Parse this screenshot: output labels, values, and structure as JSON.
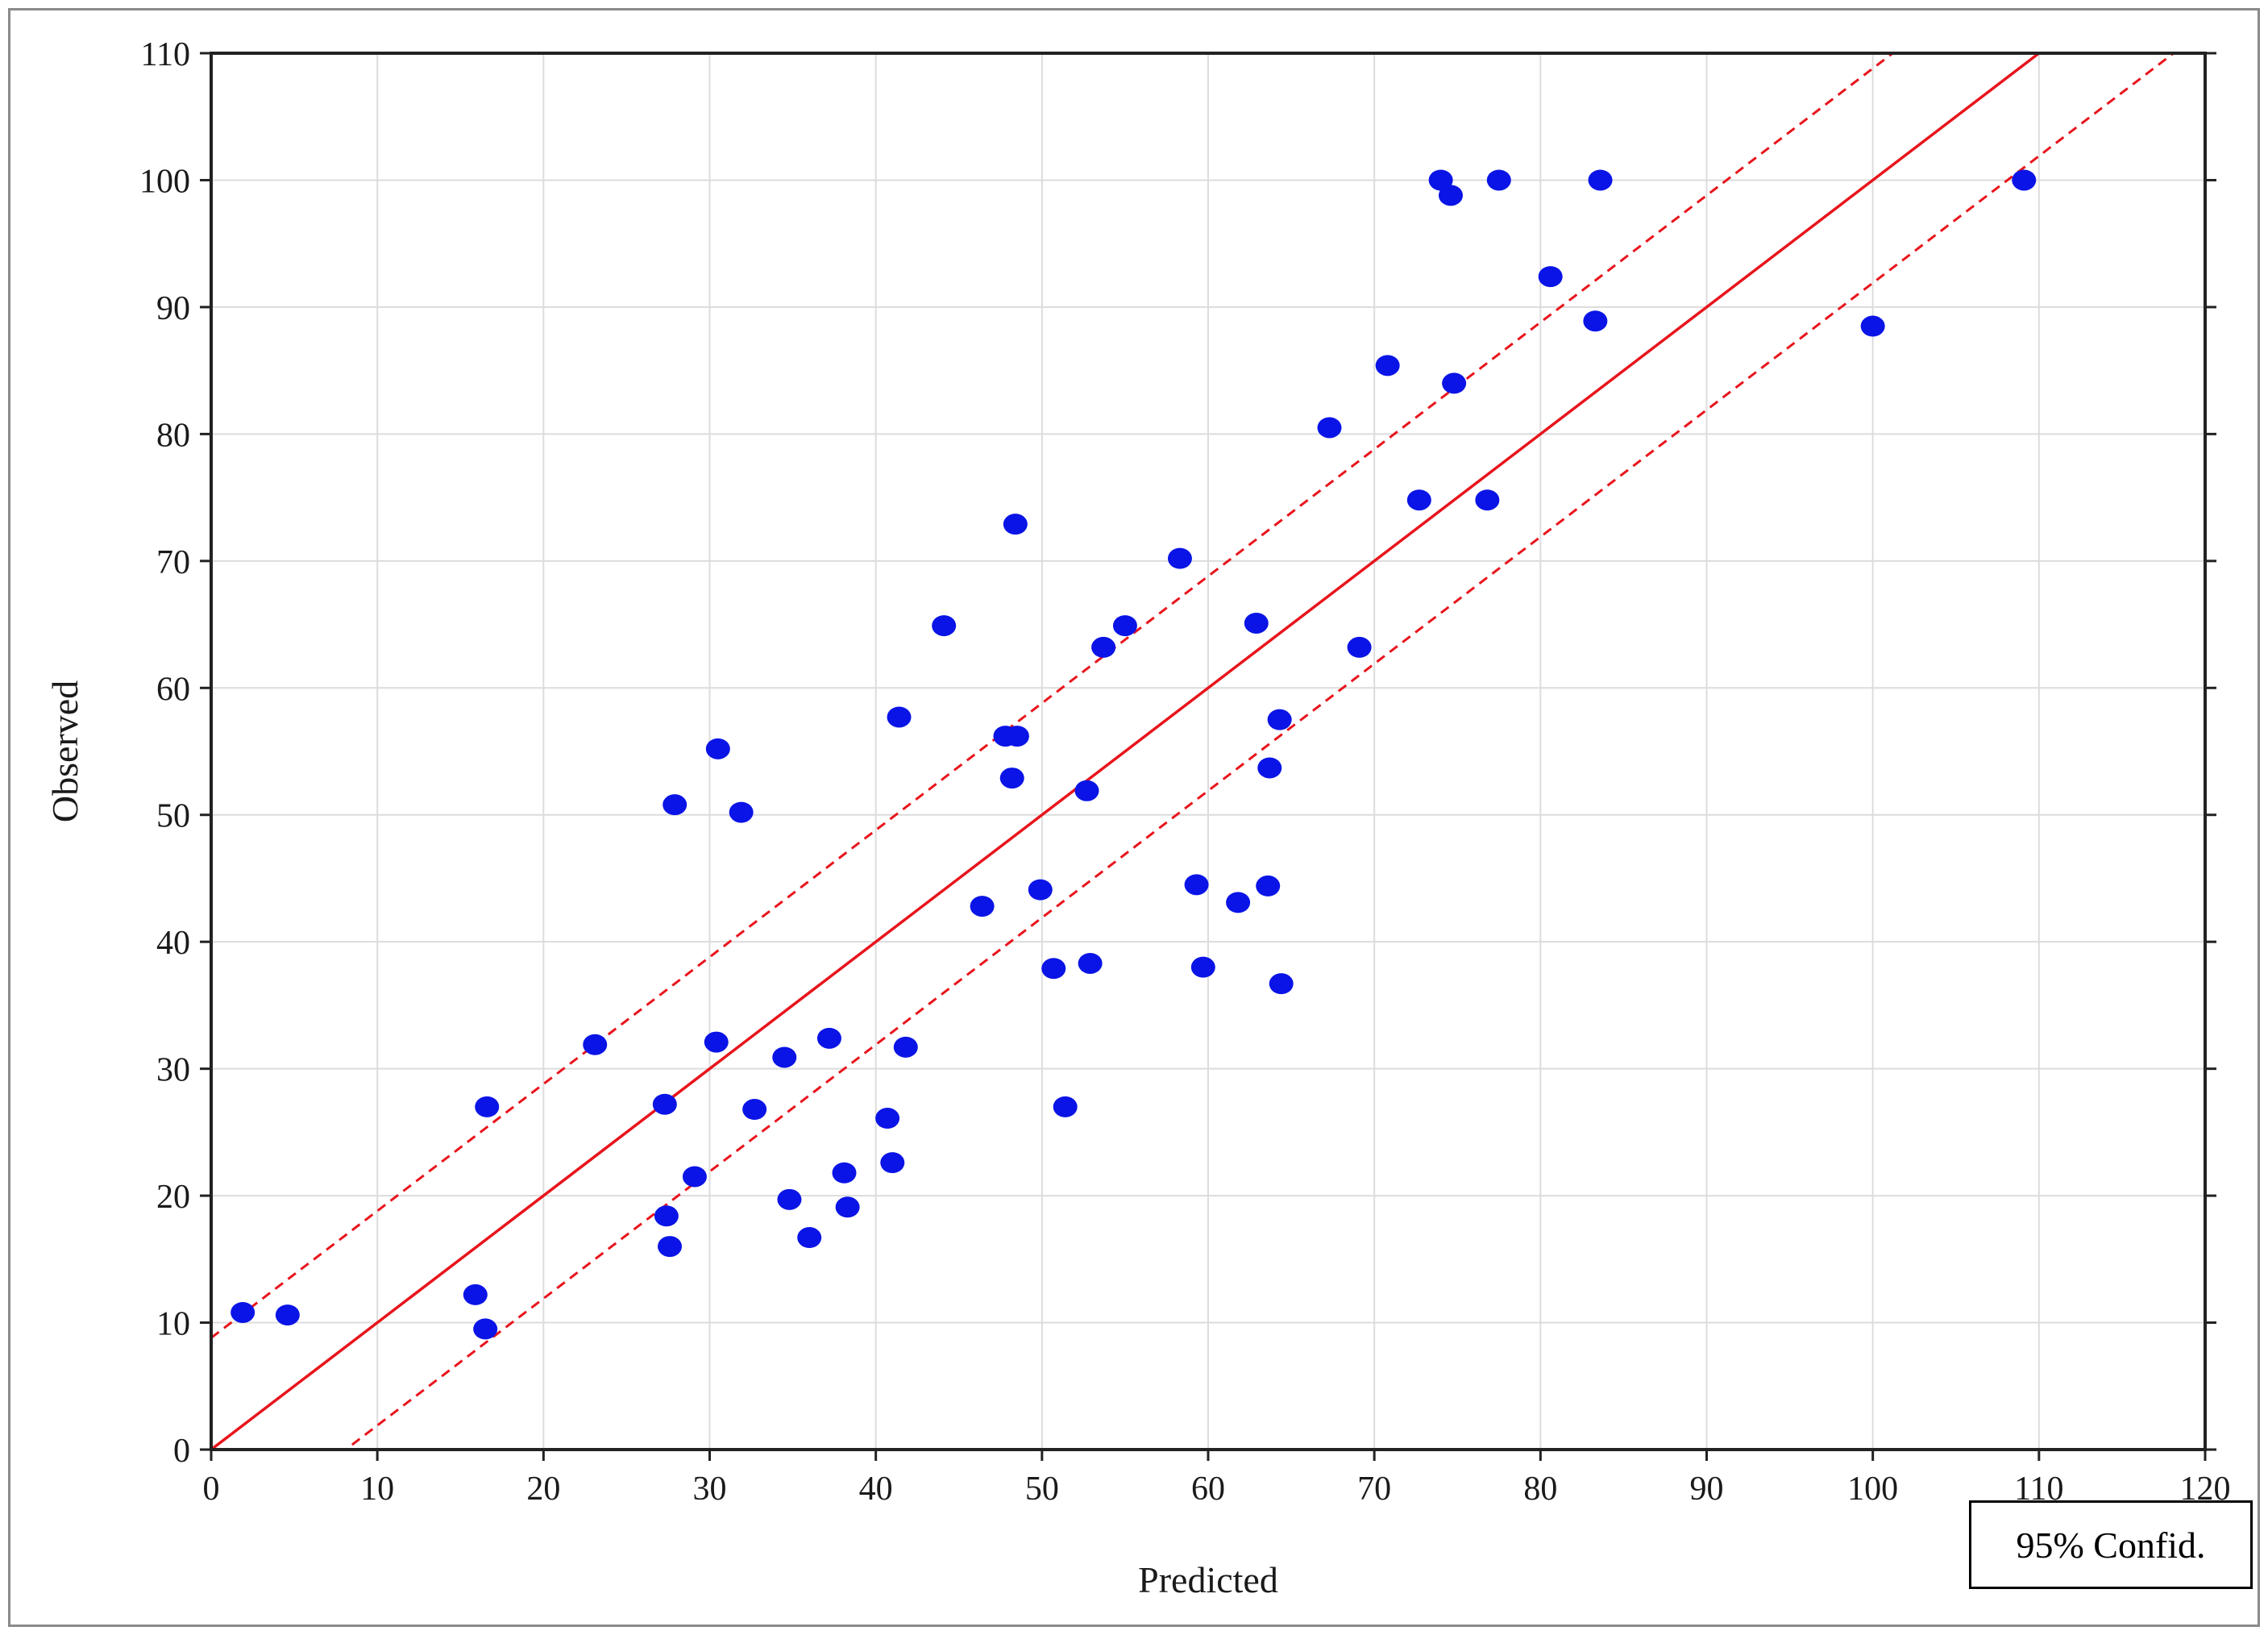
{
  "chart_data": {
    "type": "scatter",
    "title": "",
    "xlabel": "Predicted",
    "ylabel": "Observed",
    "xlim": [
      0,
      120
    ],
    "ylim": [
      0,
      110
    ],
    "x_ticks": [
      0,
      10,
      20,
      30,
      40,
      50,
      60,
      70,
      80,
      90,
      100,
      110,
      120
    ],
    "y_ticks": [
      0,
      10,
      20,
      30,
      40,
      50,
      60,
      70,
      80,
      90,
      100,
      110
    ],
    "grid": true,
    "legend": {
      "label": "95% Confid.",
      "placement": "bottom-right"
    },
    "fit_line": {
      "slope": 1,
      "intercept": 0,
      "color": "#e8141c",
      "style": "solid"
    },
    "confidence_band": {
      "upper_intercept": 8.8,
      "lower_intercept": -8.1,
      "slope": 1,
      "color": "#e8141c",
      "style": "dashed"
    },
    "marker_color": "#0a14e6",
    "points": [
      {
        "x": 1.9,
        "y": 10.8
      },
      {
        "x": 4.6,
        "y": 10.6
      },
      {
        "x": 15.9,
        "y": 12.2
      },
      {
        "x": 16.5,
        "y": 9.5
      },
      {
        "x": 16.6,
        "y": 27.0
      },
      {
        "x": 23.1,
        "y": 31.9
      },
      {
        "x": 27.3,
        "y": 27.2
      },
      {
        "x": 27.4,
        "y": 18.4
      },
      {
        "x": 27.6,
        "y": 16.0
      },
      {
        "x": 27.9,
        "y": 50.8
      },
      {
        "x": 29.1,
        "y": 21.5
      },
      {
        "x": 30.4,
        "y": 32.1
      },
      {
        "x": 30.5,
        "y": 55.2
      },
      {
        "x": 31.9,
        "y": 50.2
      },
      {
        "x": 32.7,
        "y": 26.8
      },
      {
        "x": 34.5,
        "y": 30.9
      },
      {
        "x": 34.8,
        "y": 19.7
      },
      {
        "x": 36.0,
        "y": 16.7
      },
      {
        "x": 37.2,
        "y": 32.4
      },
      {
        "x": 38.1,
        "y": 21.8
      },
      {
        "x": 38.3,
        "y": 19.1
      },
      {
        "x": 40.7,
        "y": 26.1
      },
      {
        "x": 41.0,
        "y": 22.6
      },
      {
        "x": 41.4,
        "y": 57.7
      },
      {
        "x": 41.8,
        "y": 31.7
      },
      {
        "x": 44.1,
        "y": 64.9
      },
      {
        "x": 46.4,
        "y": 42.8
      },
      {
        "x": 47.8,
        "y": 56.2
      },
      {
        "x": 48.2,
        "y": 52.9
      },
      {
        "x": 48.4,
        "y": 72.9
      },
      {
        "x": 48.5,
        "y": 56.2
      },
      {
        "x": 49.9,
        "y": 44.1
      },
      {
        "x": 50.7,
        "y": 37.9
      },
      {
        "x": 51.4,
        "y": 27.0
      },
      {
        "x": 52.7,
        "y": 51.9
      },
      {
        "x": 52.9,
        "y": 38.3
      },
      {
        "x": 53.7,
        "y": 63.2
      },
      {
        "x": 55.0,
        "y": 64.9
      },
      {
        "x": 58.3,
        "y": 70.2
      },
      {
        "x": 59.3,
        "y": 44.5
      },
      {
        "x": 59.7,
        "y": 38.0
      },
      {
        "x": 61.8,
        "y": 43.1
      },
      {
        "x": 62.9,
        "y": 65.1
      },
      {
        "x": 63.6,
        "y": 44.4
      },
      {
        "x": 63.7,
        "y": 53.7
      },
      {
        "x": 64.3,
        "y": 57.5
      },
      {
        "x": 64.4,
        "y": 36.7
      },
      {
        "x": 67.3,
        "y": 80.5
      },
      {
        "x": 69.1,
        "y": 63.2
      },
      {
        "x": 70.8,
        "y": 85.4
      },
      {
        "x": 72.7,
        "y": 74.8
      },
      {
        "x": 74.0,
        "y": 100.0
      },
      {
        "x": 74.6,
        "y": 98.8
      },
      {
        "x": 74.8,
        "y": 84.0
      },
      {
        "x": 76.8,
        "y": 74.8
      },
      {
        "x": 77.5,
        "y": 100.0
      },
      {
        "x": 80.6,
        "y": 92.4
      },
      {
        "x": 83.3,
        "y": 88.9
      },
      {
        "x": 83.6,
        "y": 100.0
      },
      {
        "x": 100.0,
        "y": 88.5
      },
      {
        "x": 109.1,
        "y": 100.0
      }
    ]
  }
}
